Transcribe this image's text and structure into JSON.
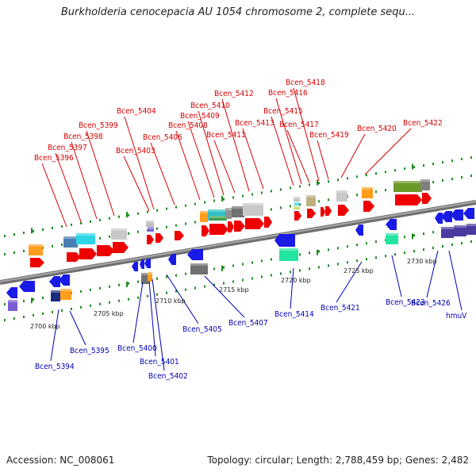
{
  "title": "Burkholderia cenocepacia AU 1054 chromosome 2, complete sequ...",
  "footer": {
    "accession": "Accession: NC_008061",
    "topology": "Topology: circular; Length: 2,788,459 bp; Genes: 2,482"
  },
  "colors": {
    "upper_label": "#d40000",
    "lower_label": "#0000b4",
    "backbone": "#888888",
    "tick": "#1c8c1c"
  },
  "kbp_labels": [
    "2700 kbp",
    "2705 kbp",
    "2710 kbp",
    "2715 kbp",
    "2720 kbp",
    "2725 kbp",
    "2730 kbp"
  ],
  "upper_labels": [
    "Bcen_5396",
    "Bcen_5397",
    "Bcen_5398",
    "Bcen_5399",
    "Bcen_5403",
    "Bcen_5404",
    "Bcen_5406",
    "Bcen_5408",
    "Bcen_5409",
    "Bcen_5410",
    "Bcen_5411",
    "Bcen_5412",
    "Bcen_5413",
    "Bcen_5415",
    "Bcen_5416",
    "Bcen_5417",
    "Bcen_5418",
    "Bcen_5419",
    "Bcen_5420",
    "Bcen_5422"
  ],
  "lower_labels": [
    "Bcen_5394",
    "Bcen_5395",
    "Bcen_5400",
    "Bcen_5401",
    "Bcen_5402",
    "Bcen_5405",
    "Bcen_5407",
    "Bcen_5414",
    "Bcen_5421",
    "Bcen_5423",
    "Bcen_5426",
    "hmuV"
  ]
}
